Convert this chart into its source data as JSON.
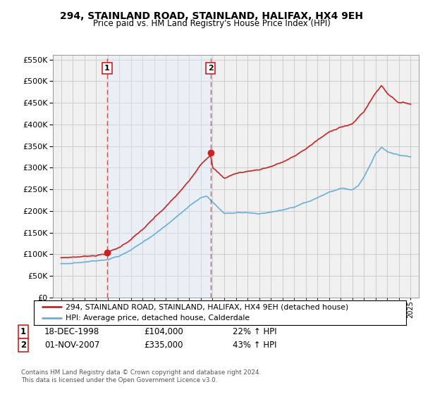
{
  "title": "294, STAINLAND ROAD, STAINLAND, HALIFAX, HX4 9EH",
  "subtitle": "Price paid vs. HM Land Registry's House Price Index (HPI)",
  "legend_line1": "294, STAINLAND ROAD, STAINLAND, HALIFAX, HX4 9EH (detached house)",
  "legend_line2": "HPI: Average price, detached house, Calderdale",
  "annotation1": {
    "num": "1",
    "date": "18-DEC-1998",
    "price": "£104,000",
    "change": "22% ↑ HPI"
  },
  "annotation2": {
    "num": "2",
    "date": "01-NOV-2007",
    "price": "£335,000",
    "change": "43% ↑ HPI"
  },
  "footer": "Contains HM Land Registry data © Crown copyright and database right 2024.\nThis data is licensed under the Open Government Licence v3.0.",
  "hpi_color": "#6baed6",
  "price_color": "#cc2222",
  "marker_color": "#cc2222",
  "vline_color": "#cc4444",
  "shade_color": "#ddeeff",
  "grid_color": "#cccccc",
  "bg_color": "#ffffff",
  "plot_bg_color": "#f0f0f0",
  "ylim": [
    0,
    560000
  ],
  "yticks": [
    0,
    50000,
    100000,
    150000,
    200000,
    250000,
    300000,
    350000,
    400000,
    450000,
    500000,
    550000
  ],
  "sale1_year": 1998.96,
  "sale1_price": 104000,
  "sale2_year": 2007.83,
  "sale2_price": 335000,
  "start_year": 1995,
  "end_year": 2025
}
